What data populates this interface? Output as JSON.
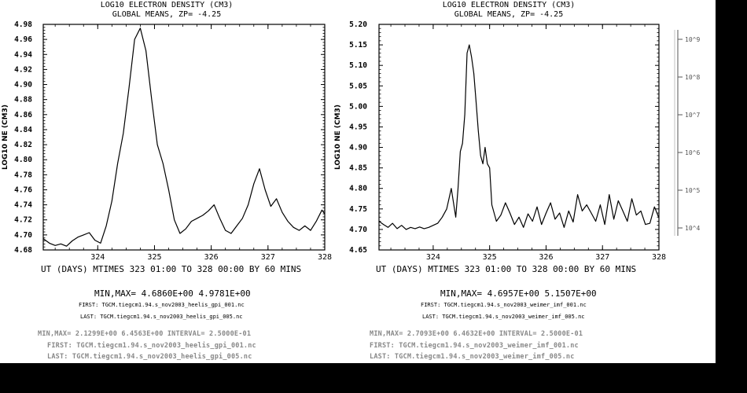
{
  "chart_data": [
    {
      "type": "line",
      "title": "LOG10 ELECTRON DENSITY (CM3)",
      "subtitle": "GLOBAL MEANS, ZP= -4.25",
      "ylabel": "LOG10 NE (CM3)",
      "xlabel": "UT (DAYS) MTIMES 323 01:00 TO 328 00:00 BY   60 MINS",
      "xlim": [
        323.04,
        328.0
      ],
      "ylim": [
        4.68,
        4.98
      ],
      "x_ticks": [
        324,
        325,
        326,
        327,
        328
      ],
      "y_ticks": [
        4.68,
        4.7,
        4.72,
        4.74,
        4.76,
        4.78,
        4.8,
        4.82,
        4.84,
        4.86,
        4.88,
        4.9,
        4.92,
        4.94,
        4.96,
        4.98
      ],
      "y_tick_labels": [
        "4.68",
        "4.70",
        "4.72",
        "4.74",
        "4.76",
        "4.78",
        "4.80",
        "4.82",
        "4.84",
        "4.86",
        "4.88",
        "4.90",
        "4.92",
        "4.94",
        "4.96",
        "4.98"
      ],
      "series": [
        {
          "x": [
            323.04,
            323.15,
            323.25,
            323.35,
            323.45,
            323.55,
            323.65,
            323.75,
            323.85,
            323.95,
            324.05,
            324.15,
            324.25,
            324.35,
            324.45,
            324.55,
            324.65,
            324.75,
            324.85,
            324.95,
            325.05,
            325.15,
            325.25,
            325.35,
            325.45,
            325.55,
            325.65,
            325.75,
            325.85,
            325.95,
            326.05,
            326.15,
            326.25,
            326.35,
            326.45,
            326.55,
            326.65,
            326.75,
            326.85,
            326.95,
            327.05,
            327.15,
            327.25,
            327.35,
            327.45,
            327.55,
            327.65,
            327.75,
            327.85,
            327.95,
            328.0
          ],
          "y": [
            4.695,
            4.689,
            4.686,
            4.688,
            4.685,
            4.692,
            4.697,
            4.7,
            4.703,
            4.693,
            4.689,
            4.712,
            4.745,
            4.795,
            4.835,
            4.895,
            4.96,
            4.975,
            4.945,
            4.88,
            4.82,
            4.795,
            4.76,
            4.72,
            4.702,
            4.708,
            4.718,
            4.722,
            4.726,
            4.732,
            4.74,
            4.722,
            4.706,
            4.702,
            4.712,
            4.722,
            4.74,
            4.768,
            4.788,
            4.76,
            4.738,
            4.748,
            4.73,
            4.718,
            4.71,
            4.706,
            4.712,
            4.706,
            4.718,
            4.733,
            4.728
          ]
        }
      ],
      "minmax": "MIN,MAX=  4.6860E+00  4.9781E+00",
      "first": "FIRST:  TGCM.tiegcm1.94.s_nov2003_heelis_gpi_001.nc",
      "last": "LAST:  TGCM.tiegcm1.94.s_nov2003_heelis_gpi_005.nc"
    },
    {
      "type": "line",
      "title": "LOG10 ELECTRON DENSITY (CM3)",
      "subtitle": "GLOBAL MEANS, ZP= -4.25",
      "ylabel": "LOG10 NE (CM3)",
      "xlabel": "UT (DAYS) MTIMES 323 01:00 TO 328 00:00 BY   60 MINS",
      "xlim": [
        323.04,
        328.0
      ],
      "ylim": [
        4.65,
        5.2
      ],
      "x_ticks": [
        324,
        325,
        326,
        327,
        328
      ],
      "y_ticks": [
        4.65,
        4.7,
        4.75,
        4.8,
        4.85,
        4.9,
        4.95,
        5.0,
        5.05,
        5.1,
        5.15,
        5.2
      ],
      "y_tick_labels": [
        "4.65",
        "4.70",
        "4.75",
        "4.80",
        "4.85",
        "4.90",
        "4.95",
        "5.00",
        "5.05",
        "5.10",
        "5.15",
        "5.20"
      ],
      "series": [
        {
          "x": [
            323.04,
            323.12,
            323.2,
            323.28,
            323.36,
            323.44,
            323.52,
            323.6,
            323.68,
            323.76,
            323.84,
            323.92,
            324.0,
            324.08,
            324.16,
            324.24,
            324.32,
            324.4,
            324.44,
            324.48,
            324.52,
            324.56,
            324.6,
            324.64,
            324.68,
            324.72,
            324.76,
            324.8,
            324.84,
            324.88,
            324.92,
            324.96,
            325.0,
            325.04,
            325.12,
            325.2,
            325.28,
            325.36,
            325.44,
            325.52,
            325.6,
            325.68,
            325.76,
            325.84,
            325.92,
            326.0,
            326.08,
            326.16,
            326.24,
            326.32,
            326.4,
            326.48,
            326.56,
            326.64,
            326.72,
            326.8,
            326.88,
            326.96,
            327.04,
            327.12,
            327.2,
            327.28,
            327.36,
            327.44,
            327.52,
            327.6,
            327.68,
            327.76,
            327.84,
            327.92,
            328.0
          ],
          "y": [
            4.72,
            4.712,
            4.705,
            4.715,
            4.702,
            4.71,
            4.7,
            4.705,
            4.702,
            4.706,
            4.702,
            4.705,
            4.71,
            4.715,
            4.73,
            4.75,
            4.8,
            4.73,
            4.8,
            4.89,
            4.91,
            4.98,
            5.13,
            5.15,
            5.12,
            5.08,
            5.01,
            4.94,
            4.88,
            4.86,
            4.9,
            4.86,
            4.85,
            4.76,
            4.72,
            4.735,
            4.765,
            4.74,
            4.712,
            4.73,
            4.705,
            4.738,
            4.72,
            4.755,
            4.712,
            4.74,
            4.765,
            4.725,
            4.74,
            4.705,
            4.745,
            4.718,
            4.785,
            4.745,
            4.76,
            4.74,
            4.72,
            4.76,
            4.712,
            4.785,
            4.725,
            4.77,
            4.745,
            4.72,
            4.775,
            4.735,
            4.745,
            4.712,
            4.715,
            4.755,
            4.728
          ]
        }
      ],
      "minmax": "MIN,MAX=  4.6957E+00  5.1507E+00",
      "first": "FIRST:  TGCM.tiegcm1.94.s_nov2003_weimer_imf_001.nc",
      "last": "LAST:  TGCM.tiegcm1.94.s_nov2003_weimer_imf_005.nc"
    }
  ],
  "scale_bar": {
    "labels": [
      "10^9",
      "10^8",
      "10^7",
      "10^6",
      "10^5",
      "10^4"
    ]
  },
  "ghost_text": {
    "left": [
      "MIN,MAX=  2.1299E+00  6.4563E+00 INTERVAL=  2.5000E-01",
      "FIRST:  TGCM.tiegcm1.94.s_nov2003_heelis_gpi_001.nc",
      "LAST:  TGCM.tiegcm1.94.s_nov2003_heelis_gpi_005.nc"
    ],
    "right": [
      "MIN,MAX=  2.7093E+00  6.4632E+00 INTERVAL=  2.5000E-01",
      "FIRST:  TGCM.tiegcm1.94.s_nov2003_weimer_imf_001.nc",
      "LAST:  TGCM.tiegcm1.94.s_nov2003_weimer_imf_005.nc"
    ]
  },
  "colors": {
    "background": "#ffffff",
    "foreground": "#000000",
    "ghost": "#888888"
  }
}
